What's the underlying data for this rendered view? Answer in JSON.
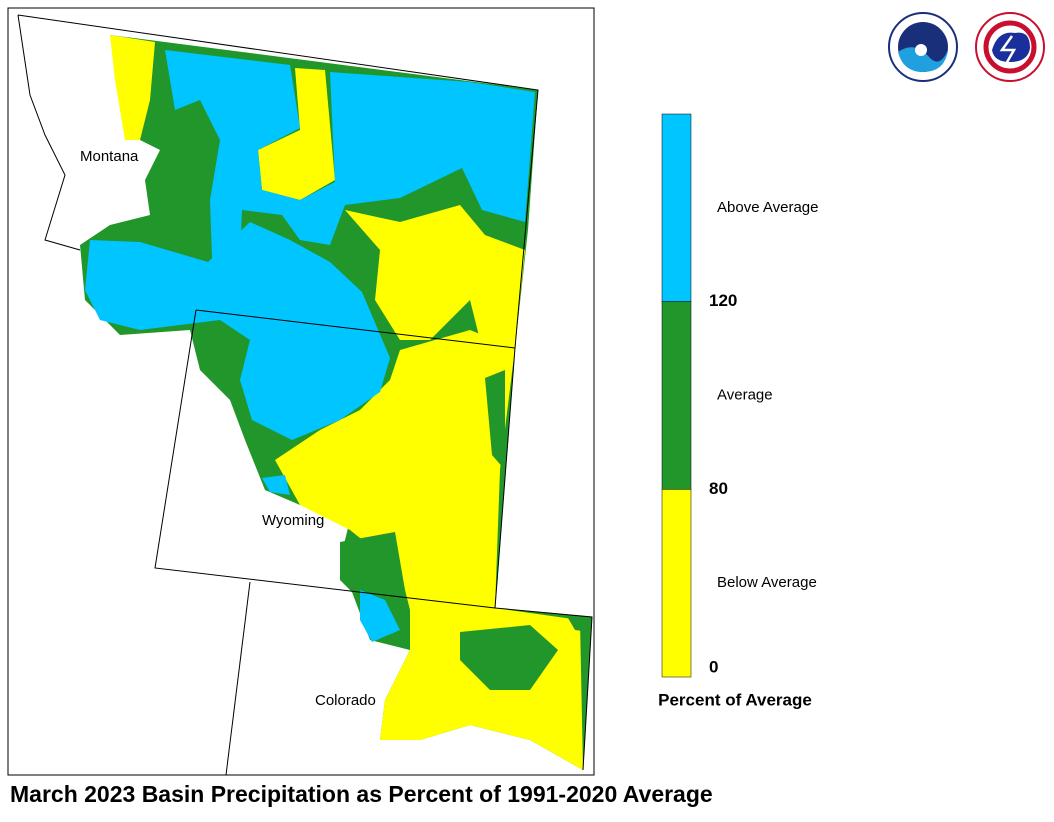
{
  "map": {
    "title": "March 2023 Basin Precipitation as Percent of 1991-2020 Average",
    "states": [
      "Montana",
      "Wyoming",
      "Colorado"
    ],
    "legend": {
      "title": "Percent of Average",
      "classes": [
        {
          "label": "Above Average",
          "color": "#00c5ff"
        },
        {
          "label": "Average",
          "color": "#21962a"
        },
        {
          "label": "Below Average",
          "color": "#ffff00"
        }
      ],
      "ticks": [
        120,
        80,
        0
      ]
    }
  }
}
